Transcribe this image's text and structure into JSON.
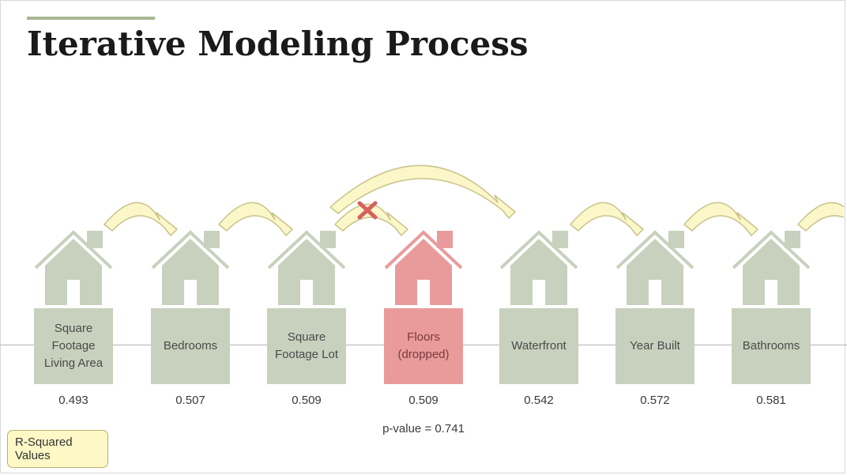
{
  "title": "Iterative Modeling Process",
  "colors": {
    "accent": "#a9b896",
    "house": "#c8d1bd",
    "dropped": "#e99b9b",
    "arrow_fill": "#fbf7c8",
    "arrow_stroke": "#c9c38a",
    "remove_mark": "#d76060",
    "legend_fill": "#fdf8c6"
  },
  "steps": [
    {
      "label": "Square Footage Living Area",
      "r_squared": "0.493",
      "dropped": false
    },
    {
      "label": "Bedrooms",
      "r_squared": "0.507",
      "dropped": false
    },
    {
      "label": "Square Footage Lot",
      "r_squared": "0.509",
      "dropped": false
    },
    {
      "label": "Floors (dropped)",
      "r_squared": "0.509",
      "dropped": true
    },
    {
      "label": "Waterfront",
      "r_squared": "0.542",
      "dropped": false
    },
    {
      "label": "Year Built",
      "r_squared": "0.572",
      "dropped": false
    },
    {
      "label": "Bathrooms",
      "r_squared": "0.581",
      "dropped": false
    }
  ],
  "p_value_note": "p-value = 0.741",
  "legend_label": "R-Squared Values",
  "icons": {
    "house": "house-icon",
    "arrow": "curved-arrow-icon",
    "remove": "x-mark-icon"
  }
}
